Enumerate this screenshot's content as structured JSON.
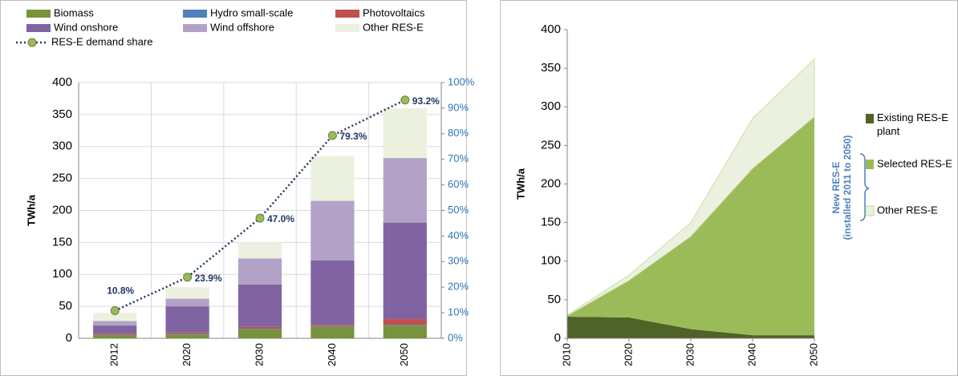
{
  "chart_data": [
    {
      "type": "bar",
      "stacked": true,
      "y_label": "TWh/a",
      "categories": [
        "2012",
        "2020",
        "2030",
        "2040",
        "2050"
      ],
      "series": [
        {
          "name": "Biomass",
          "color": "#77933c",
          "values": [
            5,
            6,
            14,
            18,
            20
          ]
        },
        {
          "name": "Hydro small-scale",
          "color": "#4f81bd",
          "values": [
            1,
            1,
            1,
            1,
            1
          ]
        },
        {
          "name": "Photovoltaics",
          "color": "#c0504d",
          "values": [
            2,
            2,
            3,
            2,
            9
          ]
        },
        {
          "name": "Wind onshore",
          "color": "#8064a2",
          "values": [
            12,
            41,
            66,
            101,
            151
          ]
        },
        {
          "name": "Wind offshore",
          "color": "#b3a2c7",
          "values": [
            7,
            12,
            41,
            93,
            101
          ]
        },
        {
          "name": "Other RES-E",
          "color": "#ebf1de",
          "values": [
            13,
            18,
            25,
            70,
            78
          ]
        },
        {
          "name": "RES-E demand share",
          "type": "line",
          "axis": "y2",
          "color": "#1f3864",
          "marker_color": "#9bbb59",
          "values": [
            10.8,
            23.9,
            47.0,
            79.3,
            93.2
          ],
          "value_labels": [
            "10.8%",
            "23.9%",
            "47.0%",
            "79.3%",
            "93.2%"
          ]
        }
      ],
      "ylim": [
        0,
        400
      ],
      "yticks": [
        0,
        50,
        100,
        150,
        200,
        250,
        300,
        350,
        400
      ],
      "y2lim": [
        0,
        100
      ],
      "y2ticks": [
        {
          "value": 0,
          "label": "0%"
        },
        {
          "value": 10,
          "label": "10%"
        },
        {
          "value": 20,
          "label": "20%"
        },
        {
          "value": 30,
          "label": "30%"
        },
        {
          "value": 40,
          "label": "40%"
        },
        {
          "value": 50,
          "label": "50%"
        },
        {
          "value": 60,
          "label": "60%"
        },
        {
          "value": 70,
          "label": "70%"
        },
        {
          "value": 80,
          "label": "80%"
        },
        {
          "value": 90,
          "label": "90%"
        },
        {
          "value": 100,
          "label": "100%"
        }
      ],
      "grid": true,
      "legend": "top"
    },
    {
      "type": "area",
      "stacked": true,
      "y_label": "TWh/a",
      "x": [
        2010,
        2020,
        2030,
        2040,
        2050
      ],
      "series": [
        {
          "name": "Existing RES-E plant",
          "color": "#4f6228",
          "values": [
            28,
            27,
            12,
            4,
            4
          ]
        },
        {
          "name": "Selected RES-E",
          "color": "#9bbb59",
          "values": [
            1,
            48,
            120,
            216,
            283
          ]
        },
        {
          "name": "Other RES-E",
          "color": "#ebf1de",
          "values": [
            1,
            7,
            18,
            65,
            75
          ]
        }
      ],
      "annotation": [
        "New RES-E",
        "(installed 2011 to 2050)"
      ],
      "xlim": [
        2010,
        2050
      ],
      "xticks": [
        2010,
        2020,
        2030,
        2040,
        2050
      ],
      "ylim": [
        0,
        400
      ],
      "yticks": [
        0,
        50,
        100,
        150,
        200,
        250,
        300,
        350,
        400
      ],
      "grid": false,
      "legend": "right"
    }
  ]
}
